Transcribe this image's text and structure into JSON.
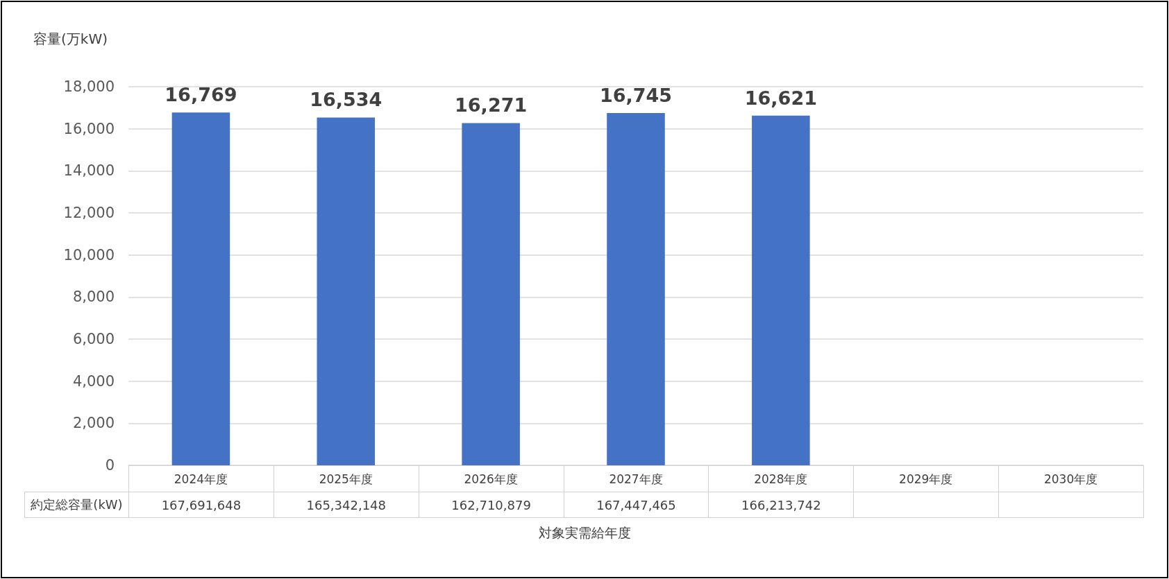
{
  "chart_data": {
    "type": "bar",
    "ylabel": "容量(万kW)",
    "xlabel": "対象実需給年度",
    "categories": [
      "2024年度",
      "2025年度",
      "2026年度",
      "2027年度",
      "2028年度",
      "2029年度",
      "2030年度"
    ],
    "values": [
      16769,
      16534,
      16271,
      16745,
      16621,
      null,
      null
    ],
    "value_labels": [
      "16,769",
      "16,534",
      "16,271",
      "16,745",
      "16,621",
      null,
      null
    ],
    "color": "#4472c4",
    "ylim": [
      0,
      18000
    ],
    "yticks": [
      0,
      {
        "value": 2000,
        "label": "2,000"
      },
      {
        "value": 4000,
        "label": "4,000"
      },
      {
        "value": 6000,
        "label": "6,000"
      },
      {
        "value": 8000,
        "label": "8,000"
      },
      {
        "value": 10000,
        "label": "10,000"
      },
      {
        "value": 12000,
        "label": "12,000"
      },
      {
        "value": 14000,
        "label": "14,000"
      },
      {
        "value": 16000,
        "label": "16,000"
      },
      {
        "value": 18000,
        "label": "18,000"
      }
    ],
    "grid": "y",
    "annotations": [
      "約定総容量(kW)",
      "167,691,648",
      "165,342,148",
      "162,710,879",
      "167,447,465",
      "166,213,742"
    ]
  }
}
